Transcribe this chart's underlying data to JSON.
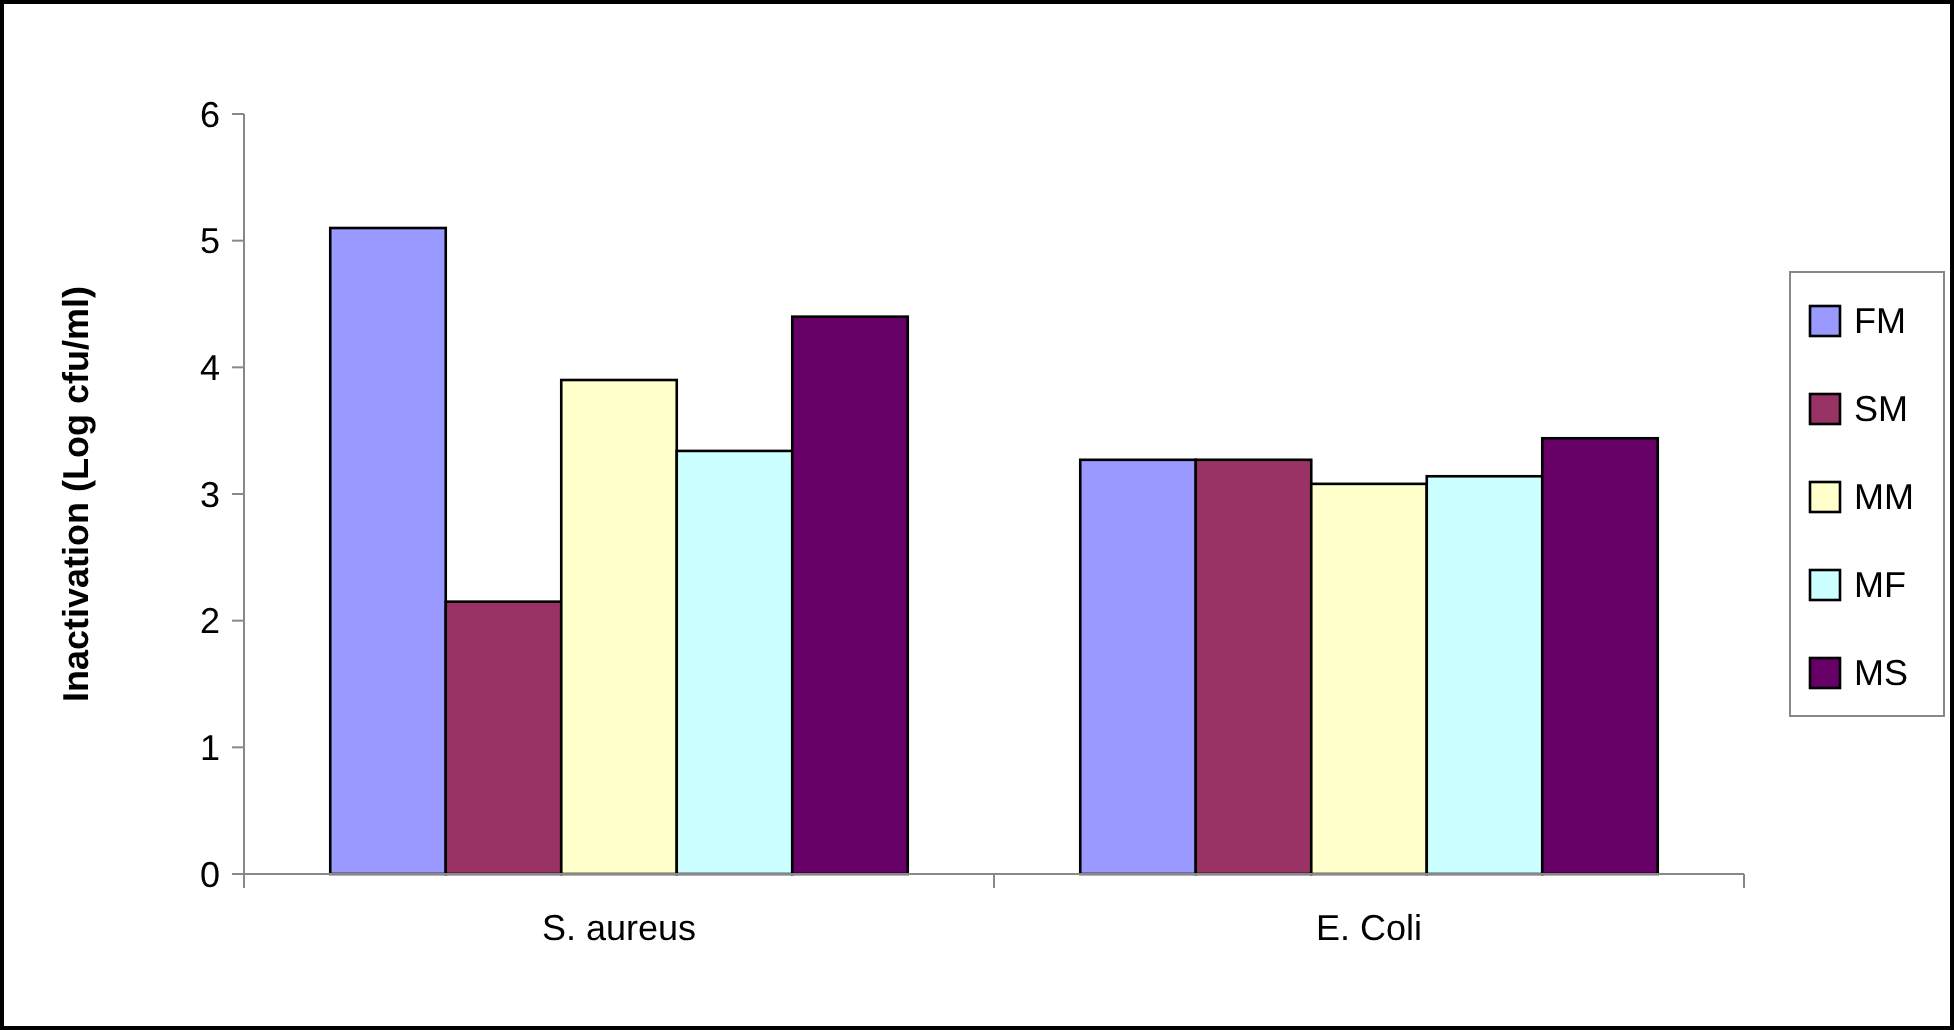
{
  "chart_data": {
    "type": "bar",
    "ylabel": "Inactivation (Log cfu/ml)",
    "categories": [
      "S. aureus",
      "E. Coli"
    ],
    "series": [
      {
        "name": "FM",
        "color": "#9999ff",
        "values": [
          5.1,
          3.27
        ]
      },
      {
        "name": "SM",
        "color": "#993366",
        "values": [
          2.15,
          3.27
        ]
      },
      {
        "name": "MM",
        "color": "#ffffcc",
        "values": [
          3.9,
          3.08
        ]
      },
      {
        "name": "MF",
        "color": "#ccffff",
        "values": [
          3.34,
          3.14
        ]
      },
      {
        "name": "MS",
        "color": "#660066",
        "values": [
          4.4,
          3.44
        ]
      }
    ],
    "ylim": [
      0,
      6
    ],
    "yticks": [
      0,
      1,
      2,
      3,
      4,
      5,
      6
    ],
    "grid": false,
    "legend": "right"
  }
}
